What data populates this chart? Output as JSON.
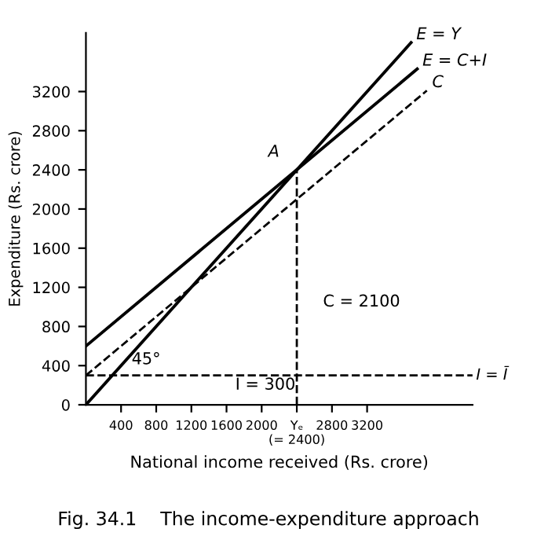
{
  "chart_data": {
    "type": "line",
    "title": "Fig. 34.1    The income-expenditure approach",
    "xlabel": "National income received (Rs. crore)",
    "ylabel": "Expenditure (Rs. crore)",
    "series": [
      {
        "name": "E = Y",
        "color": "#000000",
        "x": [
          0,
          3700
        ],
        "values": [
          0,
          3700
        ],
        "line_style": "solid"
      },
      {
        "name": "E = C+I",
        "color": "#000000",
        "x": [
          0,
          3770
        ],
        "values": [
          600,
          3430
        ],
        "line_style": "solid"
      },
      {
        "name": "C",
        "color": "#000000",
        "x": [
          0,
          3880
        ],
        "values": [
          300,
          3210
        ],
        "line_style": "dashed"
      },
      {
        "color": "#000000",
        "x": [
          2400,
          2400
        ],
        "values": [
          0,
          2400
        ],
        "line_style": "dashed"
      }
    ],
    "ref_lines": [
      {
        "axis": "y",
        "value": 300,
        "label": "I = Ī",
        "line_style": "dashed",
        "color": "#000000"
      }
    ],
    "annotations": [
      {
        "text": "A",
        "x": 2400,
        "y": 2400
      },
      "45°",
      "I = 300",
      {
        "text": "C = 2100",
        "x": 2400,
        "y": 1050
      }
    ],
    "xlim": [
      0,
      4400
    ],
    "ylim": [
      0,
      3800
    ],
    "xticks": [
      400,
      800,
      1200,
      1600,
      2000,
      {
        "value": 2400,
        "label": "Yₑ\n(= 2400)"
      },
      2800,
      3200
    ],
    "yticks": [
      0,
      400,
      800,
      1200,
      1600,
      2000,
      2400,
      2800,
      3200
    ],
    "grid": false,
    "legend": false,
    "marker": "none"
  }
}
